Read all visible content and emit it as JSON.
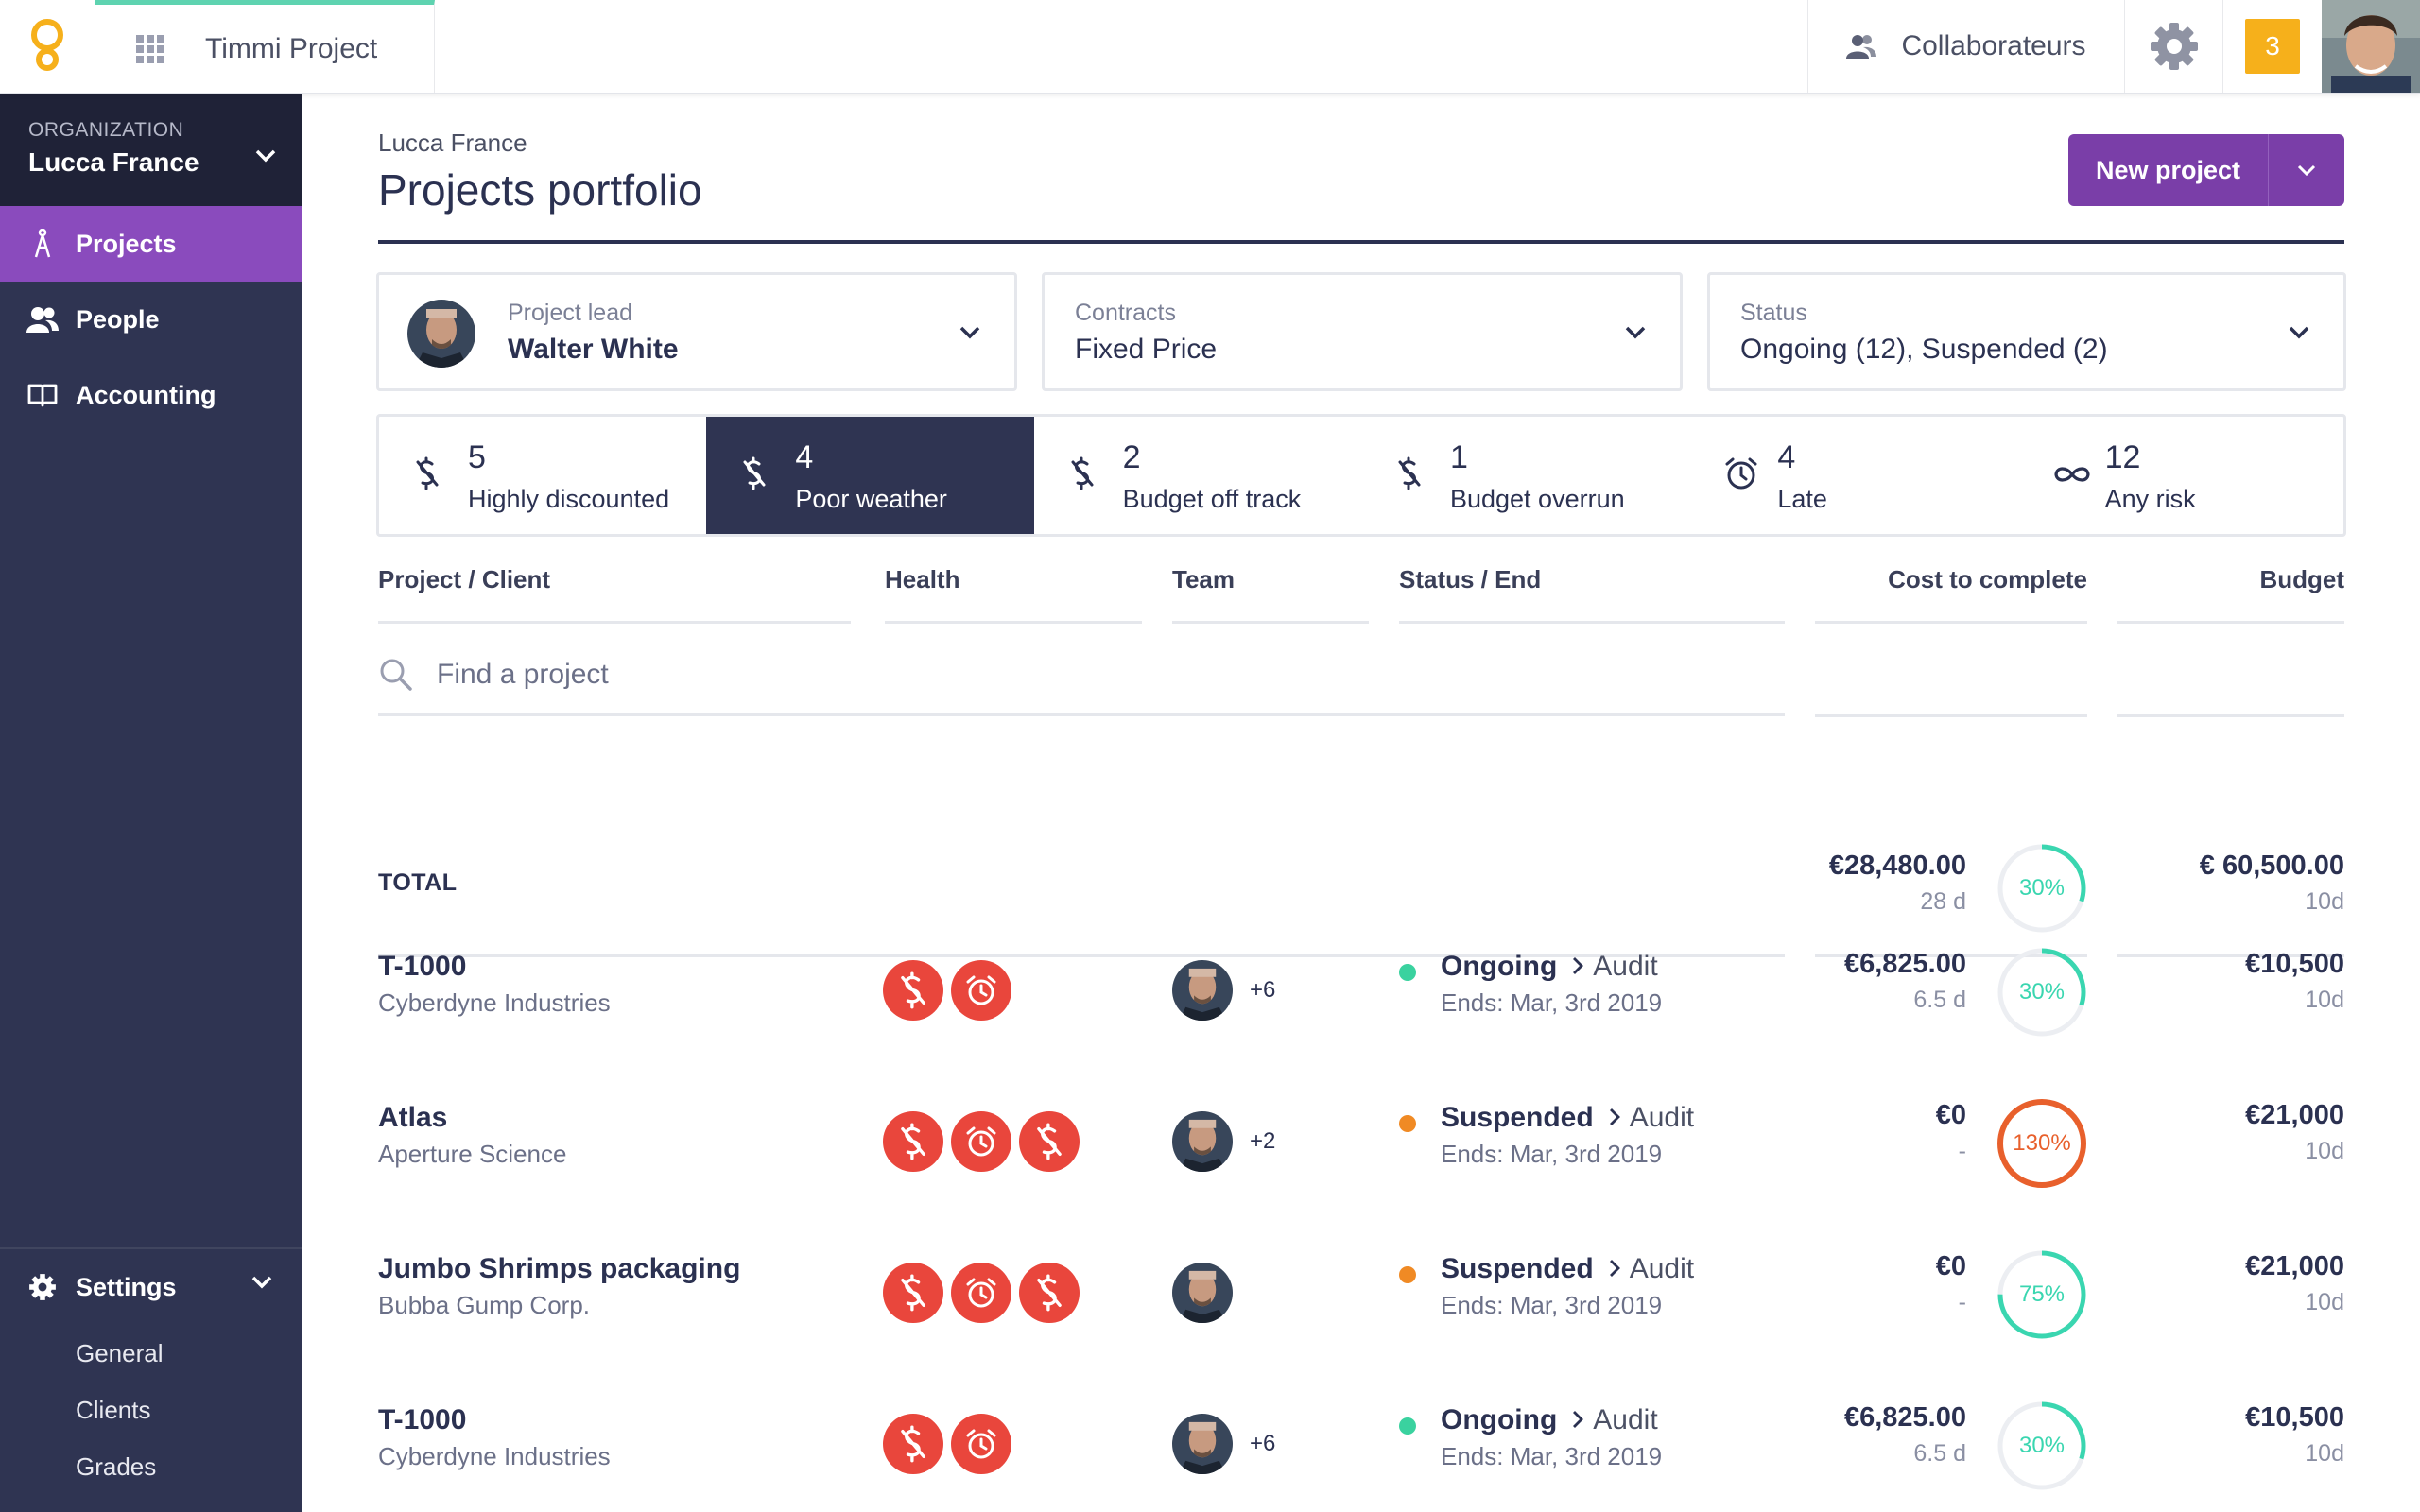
{
  "topbar": {
    "app_name": "Timmi Project",
    "collaborators_label": "Collaborateurs",
    "notification_count": "3"
  },
  "sidebar": {
    "org_label": "ORGANIZATION",
    "org_name": "Lucca France",
    "items": [
      {
        "label": "Projects",
        "icon": "projects-icon",
        "active": true
      },
      {
        "label": "People",
        "icon": "people-icon"
      },
      {
        "label": "Accounting",
        "icon": "book-icon"
      }
    ],
    "settings": {
      "label": "Settings",
      "items": [
        {
          "label": "General"
        },
        {
          "label": "Clients"
        },
        {
          "label": "Grades"
        }
      ]
    }
  },
  "header": {
    "breadcrumb": "Lucca France",
    "title": "Projects portfolio",
    "new_project_label": "New project"
  },
  "filters": {
    "lead": {
      "label": "Project lead",
      "value": "Walter White"
    },
    "contracts": {
      "label": "Contracts",
      "value": "Fixed Price"
    },
    "status": {
      "label": "Status",
      "value": "Ongoing (12), Suspended (2)"
    }
  },
  "risks": [
    {
      "count": "5",
      "label": "Highly discounted",
      "icon": "no-dollar-icon"
    },
    {
      "count": "4",
      "label": "Poor weather",
      "icon": "no-dollar-icon",
      "active": true
    },
    {
      "count": "2",
      "label": "Budget off track",
      "icon": "no-dollar-icon"
    },
    {
      "count": "1",
      "label": "Budget overrun",
      "icon": "no-dollar-icon"
    },
    {
      "count": "4",
      "label": "Late",
      "icon": "alarm-icon"
    },
    {
      "count": "12",
      "label": "Any risk",
      "icon": "infinity-icon"
    }
  ],
  "table": {
    "columns": {
      "project": "Project / Client",
      "health": "Health",
      "team": "Team",
      "status": "Status / End",
      "cost": "Cost to complete",
      "budget": "Budget"
    },
    "search_placeholder": "Find a project",
    "total": {
      "label": "TOTAL",
      "cost": "€28,480.00",
      "cost_days": "28 d",
      "percent": "30%",
      "percent_value": 30,
      "budget": "€ 60,500.00",
      "budget_days": "10d"
    },
    "rows": [
      {
        "name": "T-1000",
        "client": "Cyberdyne Industries",
        "health": [
          "no-dollar-icon",
          "alarm-icon"
        ],
        "team_more": "+6",
        "status": "Ongoing",
        "stage": "Audit",
        "end": "Ends: Mar, 3rd 2019",
        "cost": "€6,825.00",
        "cost_days": "6.5 d",
        "percent": "30%",
        "percent_value": 30,
        "budget": "€10,500",
        "budget_days": "10d"
      },
      {
        "name": "Atlas",
        "client": "Aperture Science",
        "health": [
          "no-dollar-icon",
          "alarm-icon",
          "no-dollar-icon"
        ],
        "team_more": "+2",
        "status": "Suspended",
        "stage": "Audit",
        "end": "Ends: Mar, 3rd 2019",
        "cost": "€0",
        "cost_days": "-",
        "percent": "130%",
        "percent_value": 130,
        "budget": "€21,000",
        "budget_days": "10d"
      },
      {
        "name": "Jumbo Shrimps packaging",
        "client": "Bubba Gump Corp.",
        "health": [
          "no-dollar-icon",
          "alarm-icon",
          "no-dollar-icon"
        ],
        "team_more": "",
        "status": "Suspended",
        "stage": "Audit",
        "end": "Ends: Mar, 3rd 2019",
        "cost": "€0",
        "cost_days": "-",
        "percent": "75%",
        "percent_value": 75,
        "budget": "€21,000",
        "budget_days": "10d"
      },
      {
        "name": "T-1000",
        "client": "Cyberdyne Industries",
        "health": [
          "no-dollar-icon",
          "alarm-icon"
        ],
        "team_more": "+6",
        "status": "Ongoing",
        "stage": "Audit",
        "end": "Ends: Mar, 3rd 2019",
        "cost": "€6,825.00",
        "cost_days": "6.5 d",
        "percent": "30%",
        "percent_value": 30,
        "budget": "€10,500",
        "budget_days": "10d"
      }
    ]
  },
  "colors": {
    "sidebar_bg": "#2f3452",
    "accent_purple": "#7a3ea8",
    "active_nav": "#8a4bbd",
    "danger": "#e9463c",
    "ongoing": "#3ad29f",
    "suspended": "#f08a24",
    "progress_ok": "#3ad6b0",
    "progress_over": "#e8602c",
    "notification": "#f6b01b"
  }
}
